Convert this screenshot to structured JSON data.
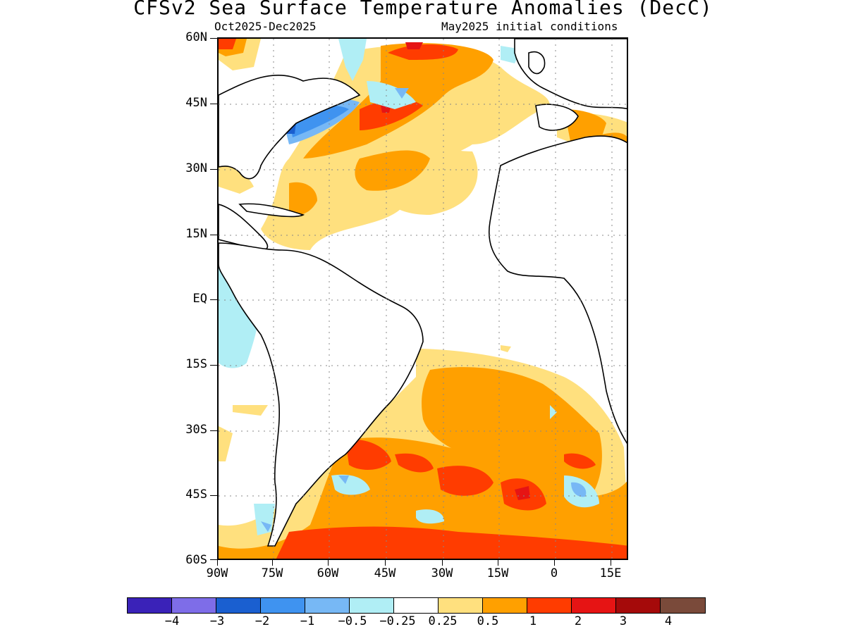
{
  "title": "CFSv2 Sea Surface Temperature Anomalies (DecC)",
  "period": "Oct2025-Dec2025",
  "init": "May2025 initial conditions",
  "lat_labels": [
    "60N",
    "45N",
    "30N",
    "15N",
    "EQ",
    "15S",
    "30S",
    "45S",
    "60S"
  ],
  "lon_labels": [
    "90W",
    "75W",
    "60W",
    "45W",
    "30W",
    "15W",
    "0",
    "15E"
  ],
  "colorbar": {
    "colors": [
      "#3a22b8",
      "#7e6de8",
      "#1a5fd0",
      "#3f93f0",
      "#77b8f5",
      "#b0eef5",
      "#ffffff",
      "#ffe07e",
      "#ffa000",
      "#ff3c00",
      "#e61414",
      "#a50a0a",
      "#7a4a3a"
    ],
    "labels": [
      "-4",
      "-3",
      "-2",
      "-1",
      "-0.5",
      "-0.25",
      "0.25",
      "0.5",
      "1",
      "2",
      "3",
      "4"
    ]
  },
  "map": {
    "lat_range": [
      -60,
      60
    ],
    "lon_range": [
      -90,
      20
    ],
    "grid": true,
    "land_color": "#ffffff"
  }
}
